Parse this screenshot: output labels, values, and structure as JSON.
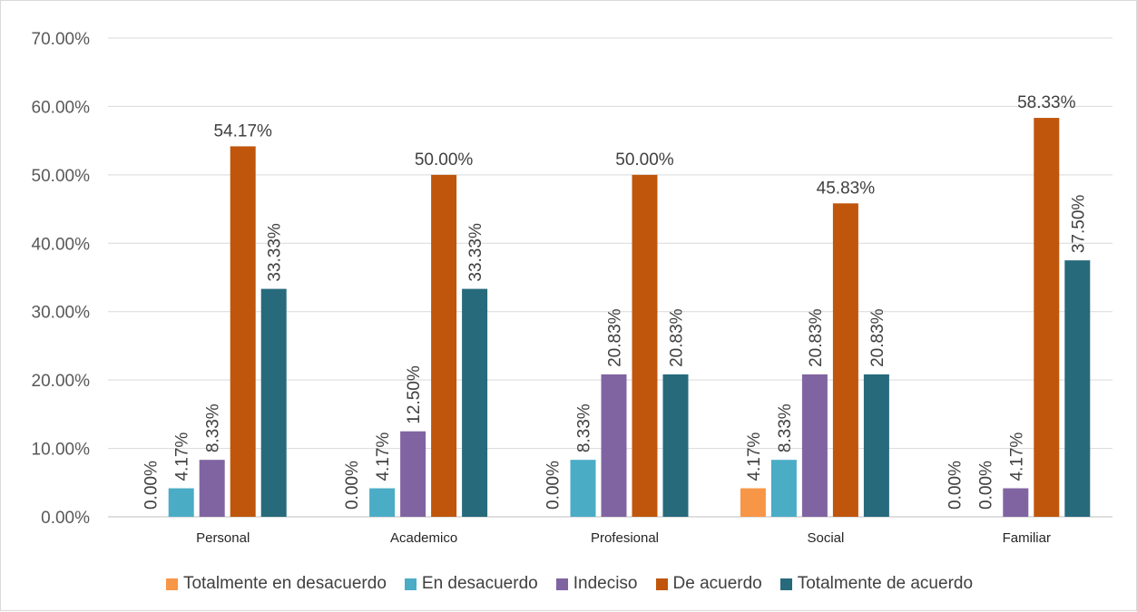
{
  "chart_data": {
    "type": "bar",
    "categories": [
      "Personal",
      "Academico",
      "Profesional",
      "Social",
      "Familiar"
    ],
    "series": [
      {
        "name": "Totalmente en desacuerdo",
        "color": "#F79646",
        "values": [
          0.0,
          0.0,
          0.0,
          4.17,
          0.0
        ],
        "labels": [
          "0.00%",
          "0.00%",
          "0.00%",
          "4.17%",
          "0.00%"
        ]
      },
      {
        "name": "En desacuerdo",
        "color": "#4BACC6",
        "values": [
          4.17,
          4.17,
          8.33,
          8.33,
          0.0
        ],
        "labels": [
          "4.17%",
          "4.17%",
          "8.33%",
          "8.33%",
          "0.00%"
        ]
      },
      {
        "name": "Indeciso",
        "color": "#8064A2",
        "values": [
          8.33,
          12.5,
          20.83,
          20.83,
          4.17
        ],
        "labels": [
          "8.33%",
          "12.50%",
          "20.83%",
          "20.83%",
          "4.17%"
        ]
      },
      {
        "name": "De acuerdo",
        "color": "#C0560C",
        "values": [
          54.17,
          50.0,
          50.0,
          45.83,
          58.33
        ],
        "labels": [
          "54.17%",
          "50.00%",
          "50.00%",
          "45.83%",
          "58.33%"
        ]
      },
      {
        "name": "Totalmente de acuerdo",
        "color": "#276A7C",
        "values": [
          33.33,
          33.33,
          20.83,
          20.83,
          37.5
        ],
        "labels": [
          "33.33%",
          "33.33%",
          "20.83%",
          "20.83%",
          "37.50%"
        ]
      }
    ],
    "ylim": [
      0,
      70
    ],
    "yticks": [
      0,
      10,
      20,
      30,
      40,
      50,
      60,
      70
    ],
    "ytick_labels": [
      "0.00%",
      "10.00%",
      "20.00%",
      "30.00%",
      "40.00%",
      "50.00%",
      "60.00%",
      "70.00%"
    ],
    "title": "",
    "xlabel": "",
    "ylabel": "",
    "grid": true,
    "legend_position": "bottom",
    "label_orientation": {
      "De acuerdo": "horizontal",
      "default": "vertical"
    }
  }
}
